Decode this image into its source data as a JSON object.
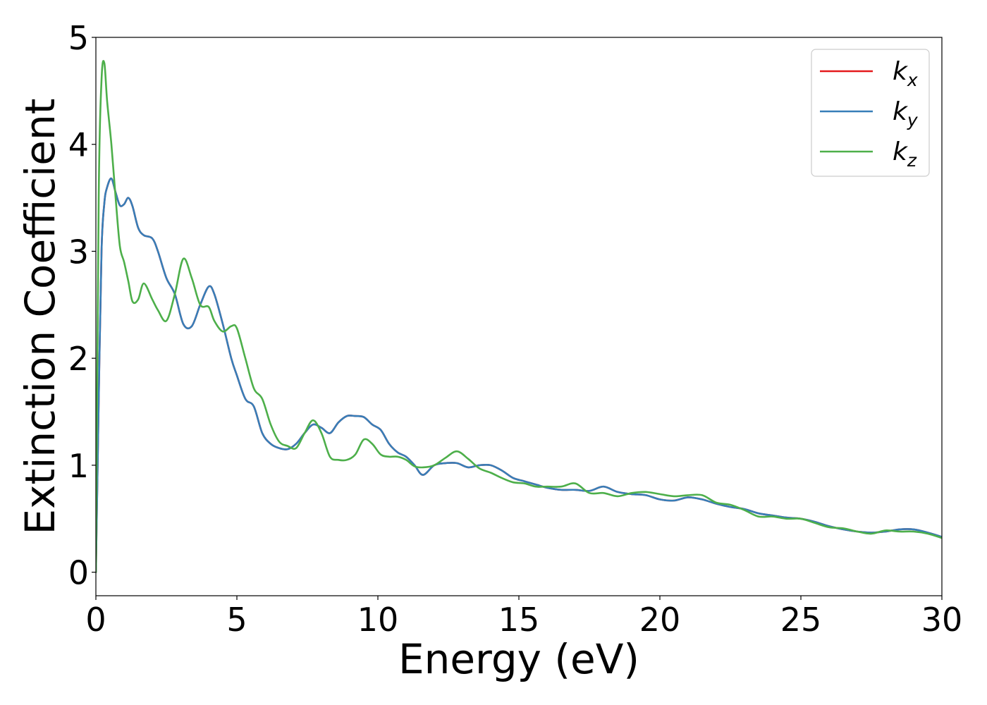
{
  "chart_data": {
    "type": "line",
    "xlabel": "Energy (eV)",
    "ylabel": "Extinction Coefficient",
    "xlim": [
      0,
      30
    ],
    "ylim": [
      -0.22,
      5
    ],
    "xticks": [
      0,
      5,
      10,
      15,
      20,
      25,
      30
    ],
    "yticks": [
      0,
      1,
      2,
      3,
      4,
      5
    ],
    "grid": false,
    "legend_position": "top-right",
    "x": [
      0,
      0.1,
      0.2,
      0.3,
      0.4,
      0.55,
      0.7,
      0.85,
      1.0,
      1.15,
      1.3,
      1.5,
      1.7,
      2.0,
      2.2,
      2.5,
      2.8,
      3.1,
      3.4,
      3.7,
      4.0,
      4.2,
      4.5,
      4.8,
      5.0,
      5.3,
      5.6,
      5.9,
      6.2,
      6.5,
      6.8,
      7.1,
      7.4,
      7.7,
      8.0,
      8.3,
      8.6,
      8.9,
      9.2,
      9.5,
      9.8,
      10.1,
      10.4,
      10.7,
      11.0,
      11.3,
      11.6,
      12.0,
      12.4,
      12.8,
      13.2,
      13.6,
      14.0,
      14.4,
      14.8,
      15.2,
      15.6,
      16.0,
      16.5,
      17.0,
      17.5,
      18.0,
      18.5,
      19.0,
      19.5,
      20.0,
      20.5,
      21.0,
      21.5,
      22.0,
      22.5,
      23.0,
      23.5,
      24.0,
      24.5,
      25.0,
      25.5,
      26.0,
      26.5,
      27.0,
      27.5,
      28.0,
      28.5,
      29.0,
      29.5,
      30.0
    ],
    "series": [
      {
        "name": "k_x",
        "label_base": "k",
        "label_sub": "x",
        "color": "#e41a1c",
        "values": [
          0.0,
          1.6,
          3.0,
          3.45,
          3.6,
          3.68,
          3.55,
          3.43,
          3.44,
          3.5,
          3.42,
          3.22,
          3.15,
          3.12,
          3.0,
          2.75,
          2.6,
          2.32,
          2.3,
          2.5,
          2.67,
          2.6,
          2.32,
          2.0,
          1.84,
          1.62,
          1.55,
          1.3,
          1.2,
          1.16,
          1.15,
          1.2,
          1.3,
          1.38,
          1.35,
          1.3,
          1.4,
          1.46,
          1.46,
          1.45,
          1.38,
          1.33,
          1.2,
          1.12,
          1.08,
          1.0,
          0.91,
          1.0,
          1.02,
          1.02,
          0.98,
          1.0,
          1.0,
          0.95,
          0.88,
          0.85,
          0.82,
          0.79,
          0.77,
          0.77,
          0.76,
          0.8,
          0.75,
          0.73,
          0.72,
          0.68,
          0.67,
          0.7,
          0.68,
          0.64,
          0.61,
          0.59,
          0.55,
          0.53,
          0.51,
          0.5,
          0.47,
          0.43,
          0.4,
          0.38,
          0.37,
          0.38,
          0.4,
          0.4,
          0.37,
          0.33
        ]
      },
      {
        "name": "k_y",
        "label_base": "k",
        "label_sub": "y",
        "color": "#377eb8",
        "values": [
          0.0,
          1.6,
          3.0,
          3.45,
          3.6,
          3.68,
          3.55,
          3.43,
          3.44,
          3.5,
          3.42,
          3.22,
          3.15,
          3.12,
          3.0,
          2.75,
          2.6,
          2.32,
          2.3,
          2.5,
          2.67,
          2.6,
          2.32,
          2.0,
          1.84,
          1.62,
          1.55,
          1.3,
          1.2,
          1.16,
          1.15,
          1.2,
          1.3,
          1.38,
          1.35,
          1.3,
          1.4,
          1.46,
          1.46,
          1.45,
          1.38,
          1.33,
          1.2,
          1.12,
          1.08,
          1.0,
          0.91,
          1.0,
          1.02,
          1.02,
          0.98,
          1.0,
          1.0,
          0.95,
          0.88,
          0.85,
          0.82,
          0.79,
          0.77,
          0.77,
          0.76,
          0.8,
          0.75,
          0.73,
          0.72,
          0.68,
          0.67,
          0.7,
          0.68,
          0.64,
          0.61,
          0.59,
          0.55,
          0.53,
          0.51,
          0.5,
          0.47,
          0.43,
          0.4,
          0.38,
          0.37,
          0.38,
          0.4,
          0.4,
          0.37,
          0.33
        ]
      },
      {
        "name": "k_z",
        "label_base": "k",
        "label_sub": "z",
        "color": "#4daf4a",
        "values": [
          0.0,
          3.5,
          4.6,
          4.76,
          4.4,
          4.0,
          3.5,
          3.05,
          2.9,
          2.72,
          2.53,
          2.55,
          2.7,
          2.55,
          2.45,
          2.35,
          2.6,
          2.93,
          2.75,
          2.5,
          2.48,
          2.35,
          2.25,
          2.3,
          2.28,
          2.0,
          1.72,
          1.62,
          1.38,
          1.22,
          1.18,
          1.16,
          1.3,
          1.42,
          1.3,
          1.08,
          1.05,
          1.05,
          1.1,
          1.24,
          1.2,
          1.1,
          1.08,
          1.08,
          1.05,
          0.99,
          0.98,
          1.0,
          1.07,
          1.13,
          1.06,
          0.97,
          0.93,
          0.88,
          0.84,
          0.83,
          0.8,
          0.8,
          0.8,
          0.83,
          0.74,
          0.74,
          0.71,
          0.74,
          0.75,
          0.73,
          0.71,
          0.72,
          0.72,
          0.65,
          0.63,
          0.58,
          0.52,
          0.52,
          0.5,
          0.5,
          0.46,
          0.42,
          0.41,
          0.38,
          0.36,
          0.39,
          0.38,
          0.38,
          0.36,
          0.32
        ]
      }
    ]
  }
}
